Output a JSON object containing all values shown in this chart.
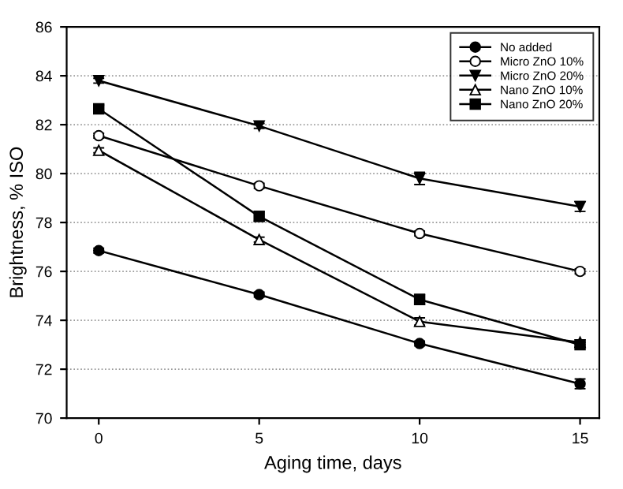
{
  "chart_data": {
    "type": "line",
    "xlabel": "Aging time, days",
    "ylabel": "Brightness, % ISO",
    "x": [
      0,
      5,
      10,
      15
    ],
    "xlim": [
      -1,
      15.6
    ],
    "xticks": [
      0,
      5,
      10,
      15
    ],
    "ylim": [
      70,
      86
    ],
    "yticks": [
      70,
      72,
      74,
      76,
      78,
      80,
      82,
      84,
      86
    ],
    "grid": "y",
    "legend": "top right",
    "line_style": "solid",
    "series": [
      {
        "name": "No added",
        "color": "#000000",
        "marker": "circle",
        "values": [
          76.85,
          75.05,
          73.05,
          71.4
        ],
        "errors": [
          0.1,
          0.1,
          0.1,
          0.2
        ]
      },
      {
        "name": "Micro ZnO 10%",
        "color": "#000000",
        "marker": "circle_open",
        "values": [
          81.55,
          79.5,
          77.55,
          76.0
        ],
        "errors": [
          0.1,
          0.1,
          0.1,
          0.1
        ]
      },
      {
        "name": "Micro ZnO 20%",
        "color": "#000000",
        "marker": "triangle_down",
        "values": [
          83.8,
          81.95,
          79.8,
          78.65
        ],
        "errors": [
          0.1,
          0.1,
          0.25,
          0.2
        ]
      },
      {
        "name": "Nano ZnO 10%",
        "color": "#000000",
        "marker": "triangle_open",
        "values": [
          80.95,
          77.3,
          73.95,
          73.1
        ],
        "errors": [
          0.1,
          0.1,
          0.15,
          0.1
        ]
      },
      {
        "name": "Nano ZnO 20%",
        "color": "#000000",
        "marker": "square",
        "values": [
          82.65,
          78.25,
          74.85,
          73.0
        ],
        "errors": [
          0.15,
          0.2,
          0.2,
          0.1
        ]
      }
    ]
  }
}
